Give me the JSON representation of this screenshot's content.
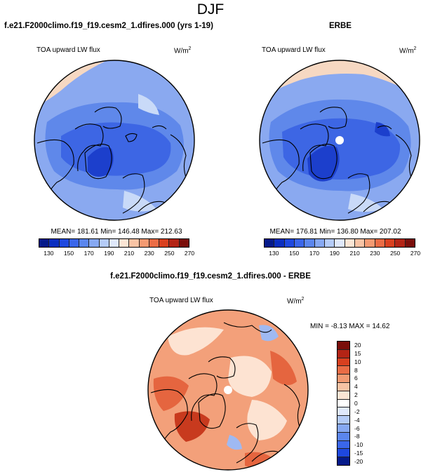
{
  "figure": {
    "title": "DJF",
    "model_label": "f.e21.F2000climo.f19_f19.cesm2_1.dfires.000 (yrs 1-19)",
    "obs_label": "ERBE",
    "diff_label": "f.e21.F2000climo.f19_f19.cesm2_1.dfires.000 - ERBE",
    "variable": "TOA upward LW flux",
    "units": "W/m",
    "units_exp": "2"
  },
  "panels": {
    "model": {
      "stats": "MEAN= 181.61   Min= 146.48   Max= 212.63",
      "mean": 181.61,
      "min": 146.48,
      "max": 212.63
    },
    "obs": {
      "stats": "MEAN= 176.81   Min= 136.80   Max= 207.02",
      "mean": 176.81,
      "min": 136.8,
      "max": 207.02
    },
    "diff": {
      "stats": "MIN =  -8.13  MAX =  14.62",
      "min": -8.13,
      "max": 14.62
    }
  },
  "colorbars": {
    "abs": {
      "colors": [
        "#051a8a",
        "#0a2ec0",
        "#1e48df",
        "#3a66ea",
        "#5b86ee",
        "#86a8f2",
        "#b4cbf7",
        "#dfe8fb",
        "#fbe5d4",
        "#f8c3a4",
        "#f39a72",
        "#ea6c45",
        "#d9401f",
        "#b32415",
        "#7a0e0a"
      ],
      "labels": [
        "130",
        "150",
        "170",
        "190",
        "210",
        "230",
        "250",
        "270"
      ]
    },
    "diff": {
      "colors": [
        "#7a0e0a",
        "#b32415",
        "#d9401f",
        "#ea6c45",
        "#f39a72",
        "#f8c3a4",
        "#fbe5d4",
        "#ffffff",
        "#dfe8fb",
        "#b4cbf7",
        "#86a8f2",
        "#5b86ee",
        "#3a66ea",
        "#1e48df",
        "#051a8a"
      ],
      "labels": [
        "20",
        "15",
        "10",
        "8",
        "6",
        "4",
        "2",
        "0",
        "-2",
        "-4",
        "-6",
        "-8",
        "-10",
        "-15",
        "-20"
      ]
    }
  },
  "map_colors": {
    "ocean_pale": "#f6d8c2",
    "abs_outer": "#8aa9f0",
    "abs_mid": "#5f88ea",
    "abs_inner": "#3d66e4",
    "abs_deep": "#1c3fcc",
    "abs_light": "#c9daf8",
    "diff_base": "#f3a07a",
    "diff_strong": "#e5653f",
    "diff_pale": "#fde3d2",
    "diff_blue": "#9fb9f2",
    "diff_deep": "#c83a1e"
  },
  "chart_data": [
    {
      "type": "heatmap",
      "title": "f.e21.F2000climo.f19_f19.cesm2_1.dfires.000 (yrs 1-19)",
      "subtitle": "TOA upward LW flux (W/m2), DJF, polar stereographic (North Pole)",
      "range": [
        130,
        270
      ],
      "mean": 181.61,
      "min": 146.48,
      "max": 212.63
    },
    {
      "type": "heatmap",
      "title": "ERBE",
      "subtitle": "TOA upward LW flux (W/m2), DJF, polar stereographic (North Pole)",
      "range": [
        130,
        270
      ],
      "mean": 176.81,
      "min": 136.8,
      "max": 207.02
    },
    {
      "type": "heatmap",
      "title": "f.e21.F2000climo.f19_f19.cesm2_1.dfires.000 - ERBE",
      "subtitle": "TOA upward LW flux difference (W/m2), DJF",
      "range": [
        -20,
        20
      ],
      "min": -8.13,
      "max": 14.62
    }
  ]
}
